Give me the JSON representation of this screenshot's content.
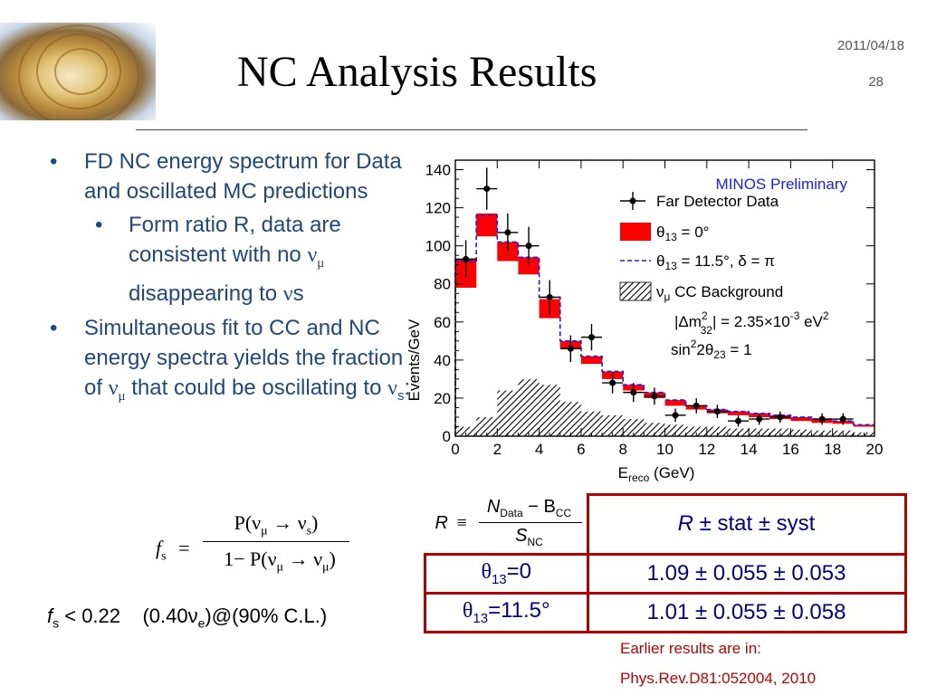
{
  "header": {
    "title": "NC Analysis Results",
    "date": "2011/04/18",
    "page": "28"
  },
  "bullets": {
    "b1": "FD NC energy spectrum for Data and oscillated MC predictions",
    "b2_pre": "Form ratio R, data are consistent with no ",
    "b2_mid": " disappearing to ",
    "b2_end": "s",
    "b3_pre": "Simultaneous fit to CC and NC energy spectra yields the fraction of ",
    "b3_mid": " that could be oscillating to ",
    "b3_end": ":",
    "nu": "ν",
    "mu": "μ",
    "s": "s"
  },
  "formula": {
    "f": "f",
    "s": "s",
    "eq": "=",
    "num": "P(ν",
    "num_mu": "μ",
    "num_arrow": " → ν",
    "num_s": "s",
    "num_close": ")",
    "den": "1− P(ν",
    "den_mu": "μ",
    "den_arrow": " → ν",
    "den_mu2": "μ",
    "den_close": ")",
    "limit": "f",
    "limit_sub": "s",
    "limit_text": " < 0.22    (0.40ν",
    "limit_e": "e",
    "limit_tail": ")@(90% C.L.)"
  },
  "table": {
    "r_def_R": "R",
    "r_def_equiv": "≡",
    "r_def_num": "N",
    "r_def_num_sub": "Data",
    "r_def_minus": " − B",
    "r_def_num_sub2": "CC",
    "r_def_den": "S",
    "r_def_den_sub": "NC",
    "header_R": "R",
    "header_rest": " ± stat ± syst",
    "rows": [
      {
        "label": "θ",
        "sub": "13",
        "val": "=0",
        "result": "1.09 ± 0.055 ± 0.053"
      },
      {
        "label": "θ",
        "sub": "13",
        "val": "=11.5°",
        "result": "1.01 ± 0.055 ± 0.058"
      }
    ]
  },
  "notes": {
    "line1": "Earlier results are in:",
    "line2": "Phys.Rev.D81:052004, 2010"
  },
  "colors": {
    "bullet_text": "#1f497d",
    "accent_red": "#b30000",
    "note_red": "#c00000",
    "minos_blue": "#1a1aff"
  },
  "chart_data": {
    "type": "bar",
    "title": "MINOS Preliminary",
    "xlabel": "E",
    "xlabel_sub": "reco",
    "xlabel_tail": " (GeV)",
    "ylabel": "Events/GeV",
    "xlim": [
      0,
      20
    ],
    "ylim": [
      0,
      145
    ],
    "xticks": [
      "0",
      "2",
      "4",
      "6",
      "8",
      "10",
      "12",
      "14",
      "16",
      "18",
      "20"
    ],
    "yticks": [
      "0",
      "20",
      "40",
      "60",
      "80",
      "100",
      "120",
      "140"
    ],
    "bin_edges": [
      0,
      1,
      2,
      3,
      4,
      5,
      6,
      7,
      8,
      9,
      10,
      11,
      12,
      13,
      14,
      15,
      16,
      17,
      18,
      19,
      20
    ],
    "series": [
      {
        "name": "Far Detector Data",
        "type": "points",
        "x": [
          0.5,
          1.5,
          2.5,
          3.5,
          4.5,
          5.5,
          6.5,
          7.5,
          8.5,
          9.5,
          10.5,
          11.5,
          12.5,
          13.5,
          14.5,
          15.5,
          16.5,
          17.5,
          18.5,
          19.5
        ],
        "y": [
          93,
          130,
          107,
          100,
          73,
          46,
          52,
          28,
          23,
          21,
          11,
          16,
          13,
          8,
          9,
          10,
          null,
          9,
          9,
          null
        ],
        "yerr": [
          10,
          11,
          10,
          10,
          9,
          7,
          7,
          5.5,
          5,
          4.5,
          3.5,
          4,
          3.5,
          3,
          3,
          3,
          null,
          3,
          3,
          null
        ]
      },
      {
        "name": "θ13 = 0°",
        "type": "band",
        "lo": [
          78,
          105,
          92,
          85,
          62,
          46,
          38,
          30,
          24,
          20,
          16,
          14,
          12,
          11,
          10,
          9,
          8,
          7,
          6.5,
          5
        ],
        "hi": [
          93,
          117,
          102,
          94,
          72,
          50,
          42,
          34,
          27,
          23,
          19,
          16,
          14,
          13,
          12,
          11,
          10,
          9,
          8,
          6
        ]
      },
      {
        "name": "θ13 = 11.5°,  δ = π",
        "type": "step-dashed",
        "values": [
          92,
          116,
          102,
          94,
          73,
          50,
          42,
          34,
          27,
          23,
          19,
          16,
          14,
          13,
          12,
          11,
          10,
          9,
          8,
          6
        ]
      },
      {
        "name": "νμ CC Background",
        "type": "hatched",
        "values": [
          5,
          10,
          24,
          30,
          27,
          18,
          13,
          11,
          9,
          7,
          6,
          5,
          5,
          4,
          4,
          4,
          3.5,
          3,
          3,
          2
        ]
      }
    ],
    "legend": [
      {
        "label": "Far Detector Data"
      },
      {
        "label": "θ",
        "sub": "13",
        "tail": " = 0°"
      },
      {
        "label": "θ",
        "sub": "13",
        "tail": " = 11.5°,  δ = π"
      },
      {
        "label": "ν",
        "sub": "μ",
        "tail": " CC Background"
      }
    ],
    "annotations": {
      "dm_pre": "|Δm",
      "dm_sup": "2",
      "dm_sub": "32",
      "dm_tail": "| = 2.35×10",
      "dm_exp": "-3",
      "dm_unit": " eV",
      "dm_unit_sup": "2",
      "sin_pre": "sin",
      "sin_sup": "2",
      "sin_mid": "2θ",
      "sin_sub": "23",
      "sin_tail": " = 1"
    },
    "grid": false,
    "legend_position": "top-right"
  }
}
